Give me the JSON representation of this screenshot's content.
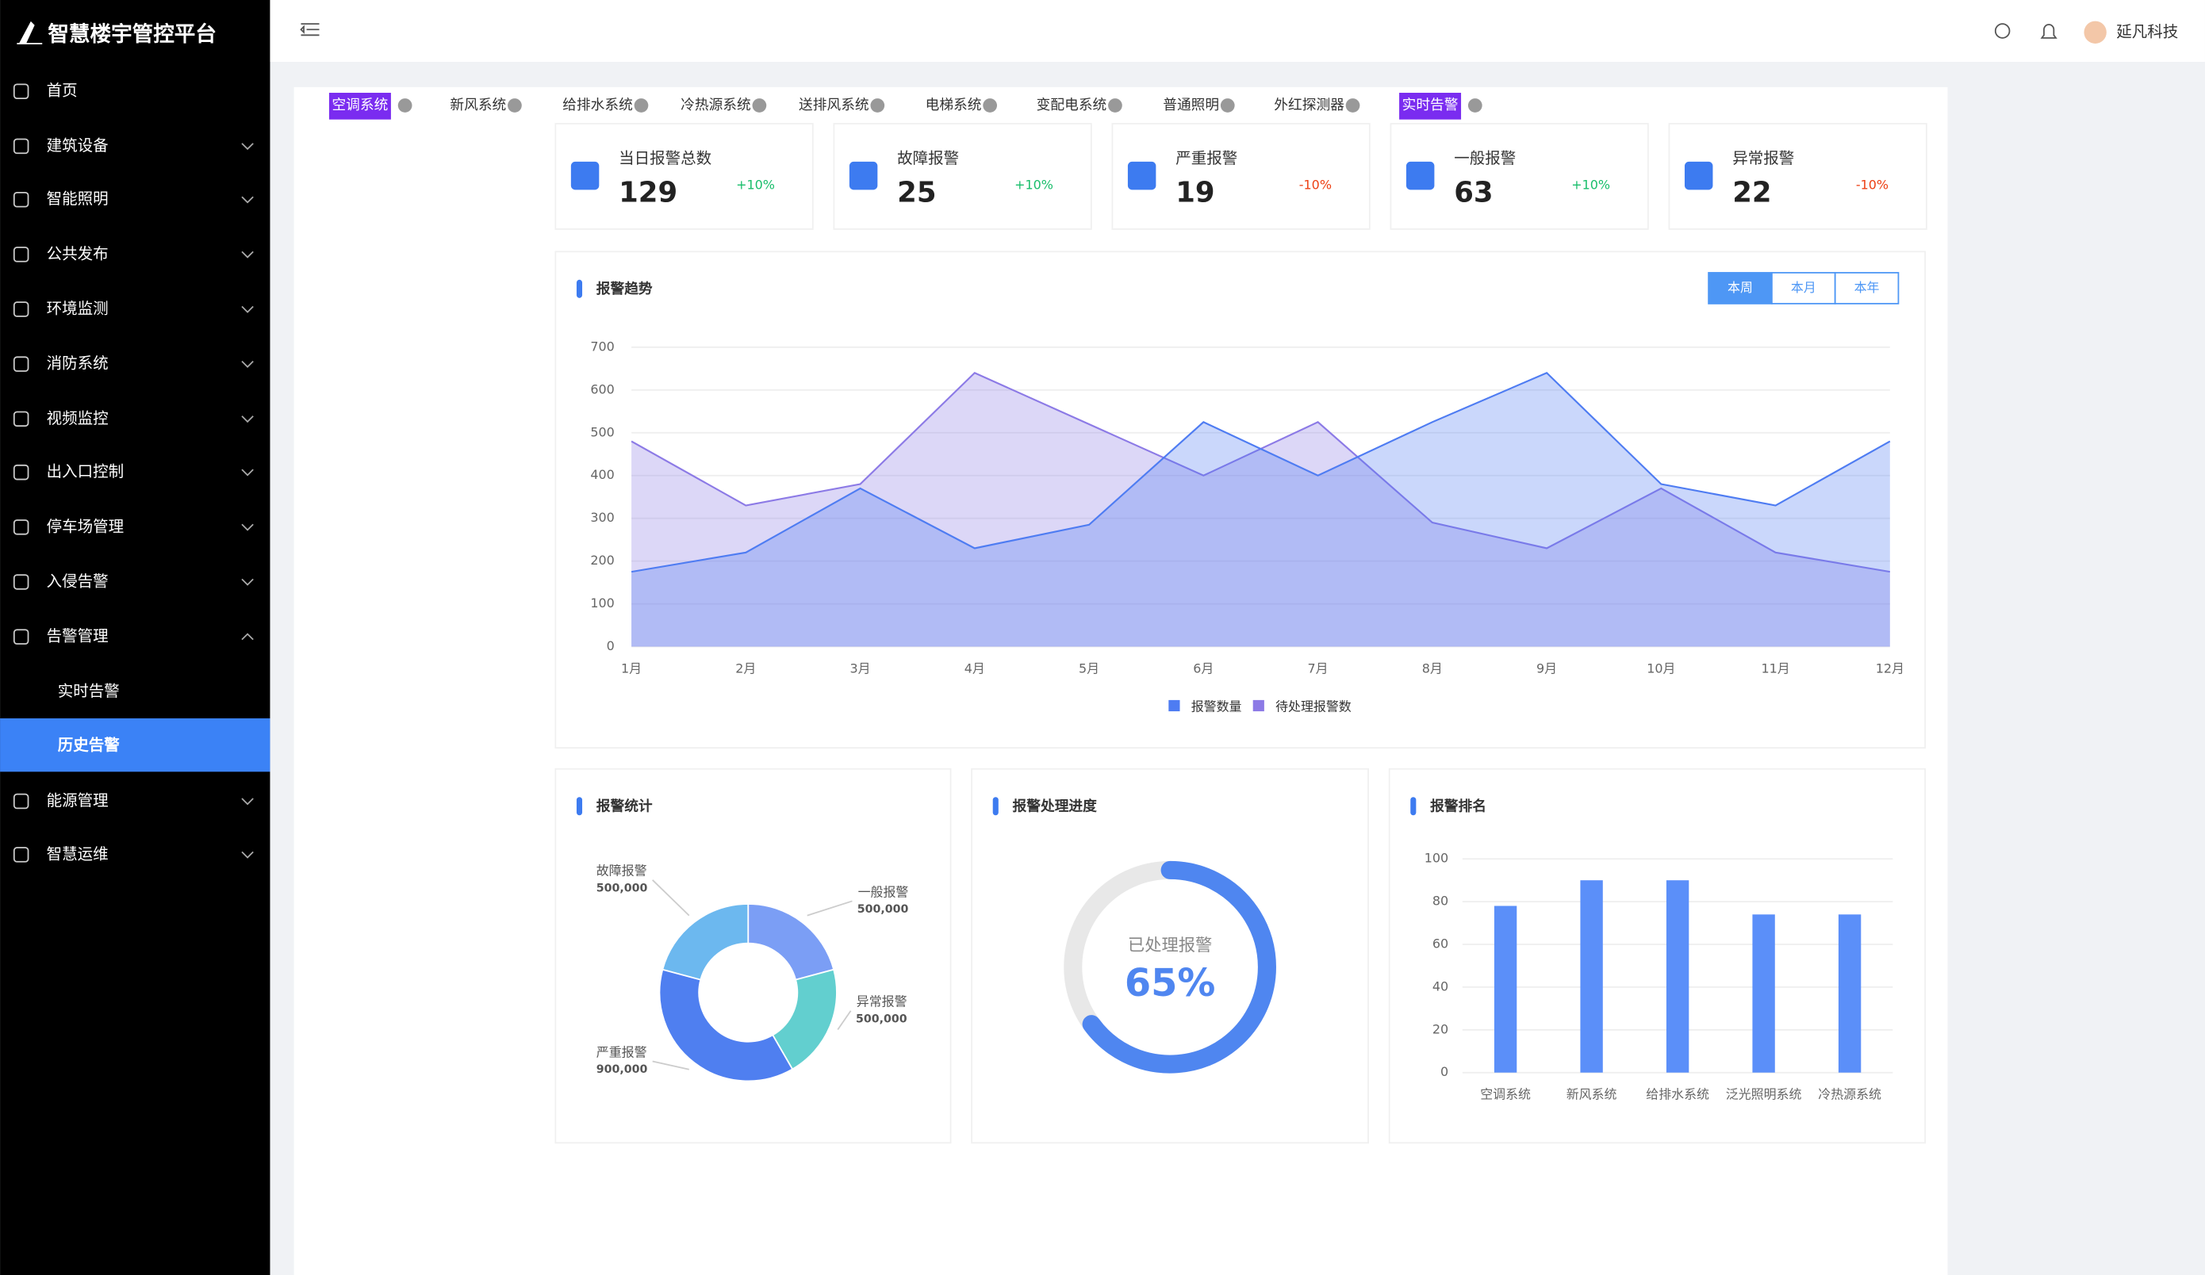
{
  "app": {
    "title": "智慧楼宇管控平台",
    "user": "延凡科技"
  },
  "menu": [
    "首页",
    "建筑设备",
    "智能照明",
    "公共发布",
    "环境监测",
    "消防系统",
    "视频监控",
    "出入口控制",
    "停车场管理",
    "入侵告警",
    "告警管理",
    "能源管理",
    "智慧运维"
  ],
  "submenu": [
    "实时告警",
    "历史告警"
  ],
  "tabs": [
    "空调系统",
    "新风系统",
    "给排水系统",
    "冷热源系统",
    "送排风系统",
    "电梯系统",
    "变配电系统",
    "普通照明",
    "外红探测器",
    "实时告警"
  ],
  "stats": [
    {
      "label": "当日报警总数",
      "value": 129,
      "change": "+10%"
    },
    {
      "label": "故障报警",
      "value": 25,
      "change": "+10%"
    },
    {
      "label": "严重报警",
      "value": 19,
      "change": "-10%"
    },
    {
      "label": "一般报警",
      "value": 63,
      "change": "+10%"
    },
    {
      "label": "异常报警",
      "value": 22,
      "change": "-10%"
    }
  ],
  "trend": {
    "type": "area",
    "title": "报警趋势",
    "periods": [
      "本周",
      "本月",
      "本年"
    ],
    "categories": [
      "1月",
      "2月",
      "3月",
      "4月",
      "5月",
      "6月",
      "7月",
      "8月",
      "9月",
      "10月",
      "11月",
      "12月"
    ],
    "series": [
      {
        "name": "报警数量",
        "color": "#4e7cf2",
        "values": [
          175,
          220,
          370,
          230,
          285,
          525,
          400,
          525,
          640,
          380,
          330,
          480
        ]
      },
      {
        "name": "待处理报警数",
        "color": "#8c7ae6",
        "values": [
          480,
          330,
          380,
          640,
          520,
          400,
          525,
          290,
          230,
          370,
          220,
          175
        ]
      }
    ],
    "ylim": [
      0,
      700
    ],
    "yticks": [
      0,
      100,
      200,
      300,
      400,
      500,
      600,
      700
    ]
  },
  "alarm_stats": {
    "type": "pie",
    "title": "报警统计",
    "categories": [
      "一般报警",
      "异常报警",
      "严重报警",
      "故障报警"
    ],
    "values": [
      500000,
      500000,
      900000,
      500000
    ],
    "value_labels": [
      "500,000",
      "500,000",
      "900,000",
      "500,000"
    ],
    "colors": [
      "#7b9ef5",
      "#62cfcf",
      "#4f7ff0",
      "#6cb8ef"
    ]
  },
  "progress": {
    "type": "gauge",
    "title": "报警处理进度",
    "label": "已处理报警",
    "value": 65,
    "value_label": "65%",
    "color": "#4f86f0"
  },
  "ranking": {
    "type": "bar",
    "title": "报警排名",
    "categories": [
      "空调系统",
      "新风系统",
      "给排水系统",
      "泛光照明系统",
      "冷热源系统"
    ],
    "values": [
      78,
      90,
      90,
      74,
      74
    ],
    "color": "#5b8ff9",
    "ylim": [
      0,
      100
    ],
    "yticks": [
      0,
      20,
      40,
      60,
      80,
      100
    ]
  }
}
